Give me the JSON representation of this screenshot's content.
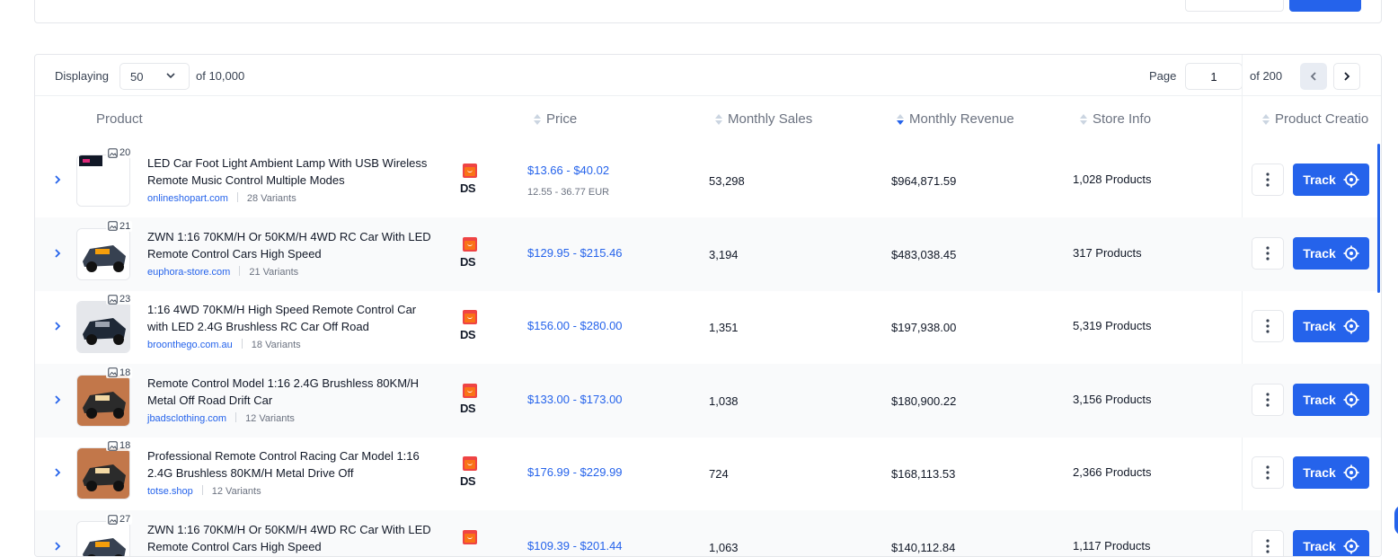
{
  "toolbar": {
    "displaying_label": "Displaying",
    "per_page": "50",
    "of_total": "of 10,000",
    "page_label": "Page",
    "current_page": "1",
    "of_pages": "of 200"
  },
  "columns": {
    "product": "Product",
    "price": "Price",
    "monthly_sales": "Monthly Sales",
    "monthly_revenue": "Monthly Revenue",
    "store_info": "Store Info",
    "product_creation": "Product Creatio"
  },
  "track_label": "Track",
  "rows": [
    {
      "images": "20",
      "title": "LED Car Foot Light Ambient Lamp With USB Wireless Remote Music Control Multiple Modes",
      "store": "onlineshopart.com",
      "variants": "28 Variants",
      "ds": "DS",
      "price": "$13.66 - $40.02",
      "price_eur": "12.55 - 36.77 EUR",
      "sales": "53,298",
      "revenue": "$964,871.59",
      "store_products": "1,028 Products"
    },
    {
      "images": "21",
      "title": "ZWN 1:16 70KM/H Or 50KM/H 4WD RC Car With LED Remote Control Cars High Speed",
      "store": "euphora-store.com",
      "variants": "21 Variants",
      "ds": "DS",
      "price": "$129.95 - $215.46",
      "price_eur": "",
      "sales": "3,194",
      "revenue": "$483,038.45",
      "store_products": "317 Products"
    },
    {
      "images": "23",
      "title": "1:16 4WD 70KM/H High Speed Remote Control Car with LED 2.4G Brushless RC Car Off Road",
      "store": "broonthego.com.au",
      "variants": "18 Variants",
      "ds": "DS",
      "price": "$156.00 - $280.00",
      "price_eur": "",
      "sales": "1,351",
      "revenue": "$197,938.00",
      "store_products": "5,319 Products"
    },
    {
      "images": "18",
      "title": "Remote Control Model 1:16 2.4G Brushless 80KM/H Metal Off Road Drift Car",
      "store": "jbadsclothing.com",
      "variants": "12 Variants",
      "ds": "DS",
      "price": "$133.00 - $173.00",
      "price_eur": "",
      "sales": "1,038",
      "revenue": "$180,900.22",
      "store_products": "3,156 Products"
    },
    {
      "images": "18",
      "title": "Professional Remote Control Racing Car Model 1:16 2.4G Brushless 80KM/H Metal Drive Off",
      "store": "totse.shop",
      "variants": "12 Variants",
      "ds": "DS",
      "price": "$176.99 - $229.99",
      "price_eur": "",
      "sales": "724",
      "revenue": "$168,113.53",
      "store_products": "2,366 Products"
    },
    {
      "images": "27",
      "title": "ZWN 1:16 70KM/H Or 50KM/H 4WD RC Car With LED Remote Control Cars High Speed",
      "store": "",
      "variants": "",
      "ds": "",
      "price": "$109.39 - $201.44",
      "price_eur": "",
      "sales": "1,063",
      "revenue": "$140,112.84",
      "store_products": "1,117 Products"
    }
  ]
}
